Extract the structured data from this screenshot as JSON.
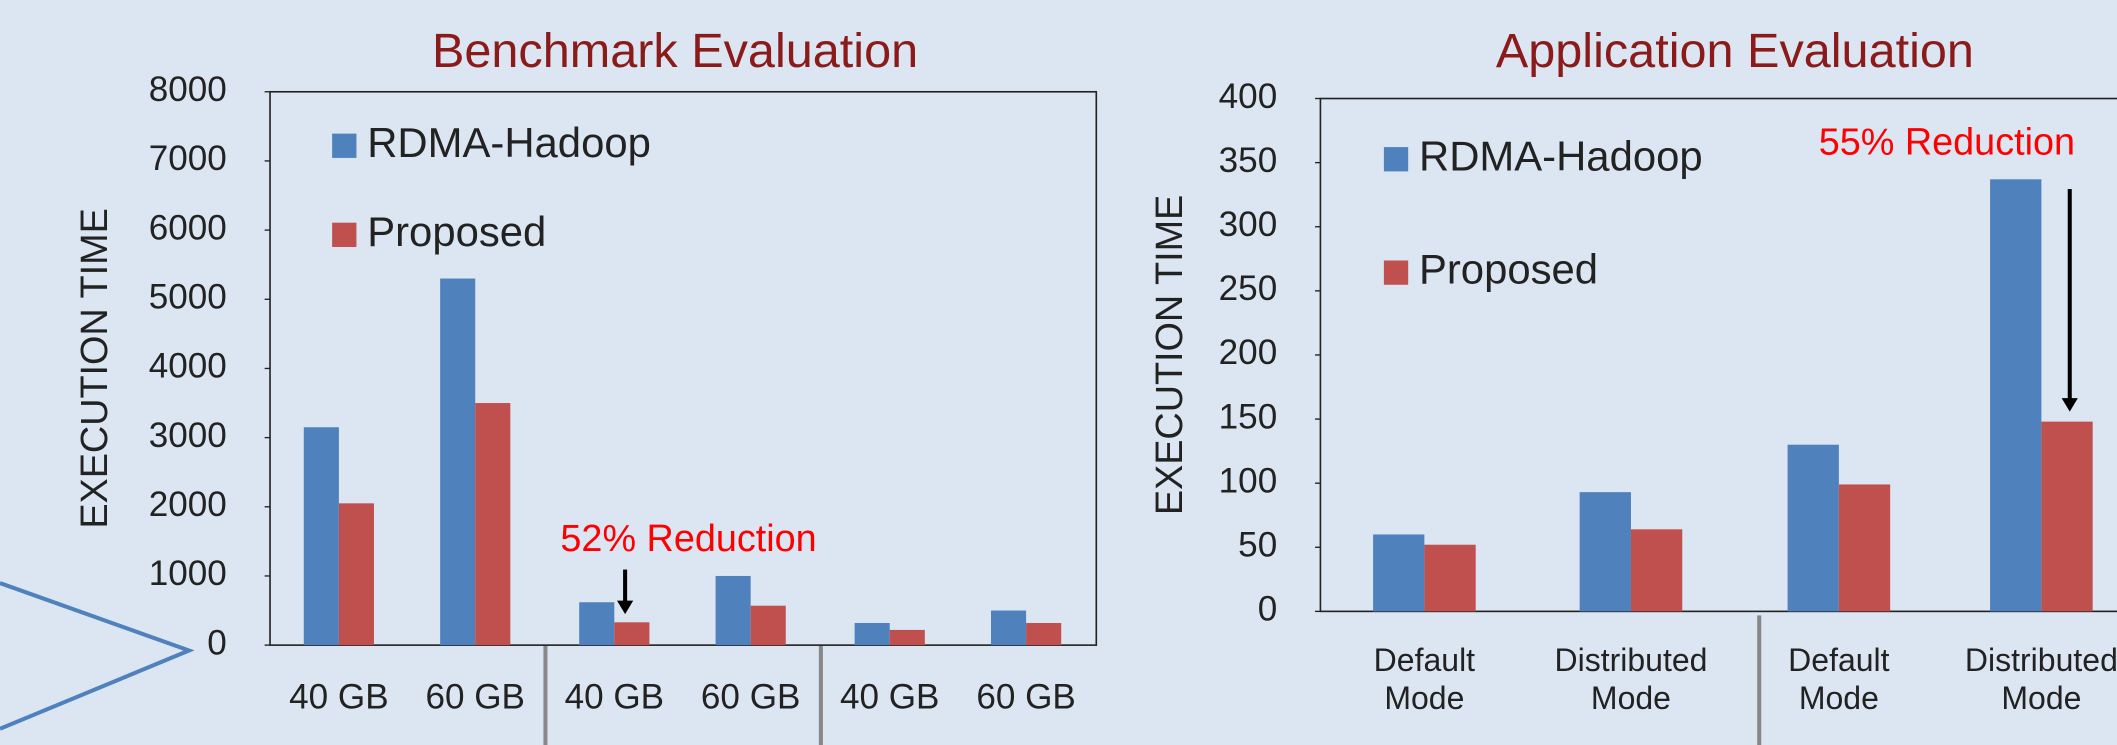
{
  "chart_data": [
    {
      "type": "bar",
      "title": "Benchmark Evaluation",
      "y_label": "EXECUTION TIME",
      "categories": [
        "40 GB",
        "60 GB",
        "40 GB",
        "60 GB",
        "40 GB",
        "60 GB"
      ],
      "series": [
        {
          "name": "RDMA-Hadoop",
          "color": "#4f81bd",
          "values": [
            3150,
            5300,
            620,
            1000,
            320,
            500
          ]
        },
        {
          "name": "Proposed",
          "color": "#c0504d",
          "values": [
            2050,
            3500,
            330,
            570,
            220,
            320
          ]
        }
      ],
      "ylim": [
        0,
        8000
      ],
      "yticks": [
        0,
        1000,
        2000,
        3000,
        4000,
        5000,
        6000,
        7000,
        8000
      ],
      "annotation": "52% Reduction"
    },
    {
      "type": "bar",
      "title": "Application Evaluation",
      "y_label": "EXECUTION TIME",
      "categories": [
        "Default Mode",
        "Distributed Mode",
        "Default Mode",
        "Distributed Mode"
      ],
      "series": [
        {
          "name": "RDMA-Hadoop",
          "color": "#4f81bd",
          "values": [
            60,
            93,
            130,
            337
          ]
        },
        {
          "name": "Proposed",
          "color": "#c0504d",
          "values": [
            52,
            64,
            99,
            148
          ]
        }
      ],
      "ylim": [
        0,
        400
      ],
      "yticks": [
        0,
        50,
        100,
        150,
        200,
        250,
        300,
        350,
        400
      ],
      "annotation": "55% Reduction"
    }
  ]
}
